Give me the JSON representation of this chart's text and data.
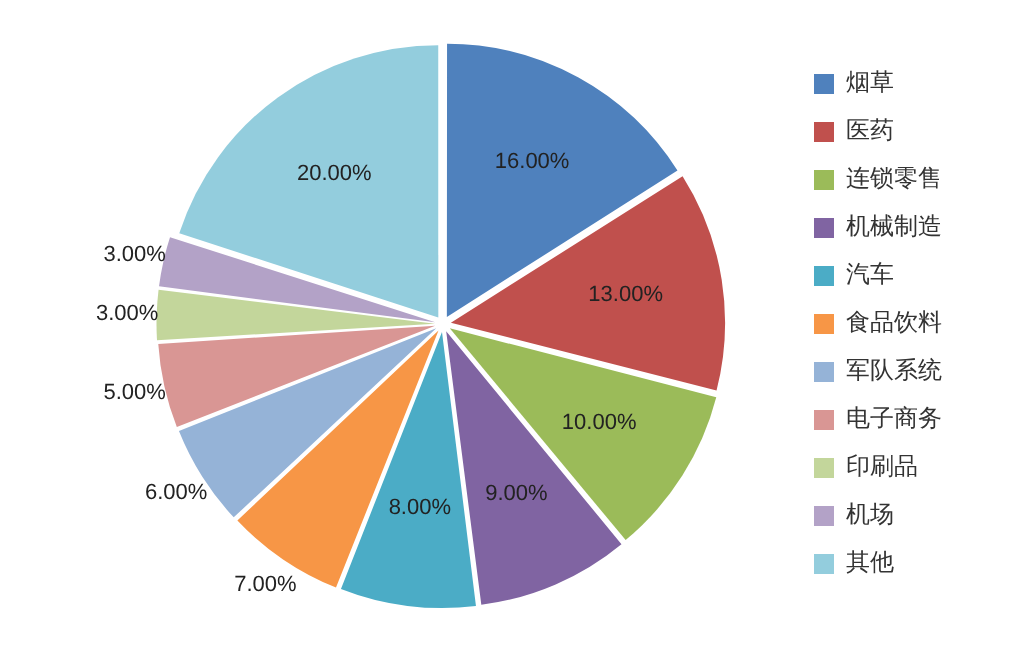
{
  "chart_data": {
    "type": "pie",
    "categories": [
      "烟草",
      "医药",
      "连锁零售",
      "机械制造",
      "汽车",
      "食品饮料",
      "军队系统",
      "电子商务",
      "印刷品",
      "机场",
      "其他"
    ],
    "values": [
      16,
      13,
      10,
      9,
      8,
      7,
      6,
      5,
      3,
      3,
      20
    ],
    "value_labels": [
      "16.00%",
      "13.00%",
      "10.00%",
      "9.00%",
      "8.00%",
      "7.00%",
      "6.00%",
      "5.00%",
      "3.00%",
      "3.00%",
      "20.00%"
    ],
    "colors": [
      "#4f81bd",
      "#c0504d",
      "#9bbb59",
      "#8064a2",
      "#4bacc6",
      "#f79646",
      "#95b3d7",
      "#d99694",
      "#c3d69b",
      "#b3a2c7",
      "#93cddd"
    ],
    "legend": "right"
  }
}
